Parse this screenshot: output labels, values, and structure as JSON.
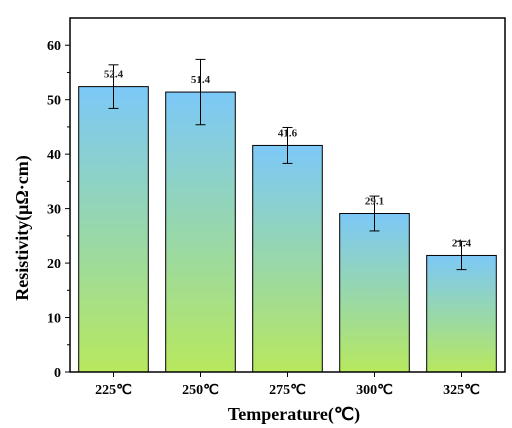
{
  "chart_data": {
    "type": "bar",
    "categories": [
      "225℃",
      "250℃",
      "275℃",
      "300℃",
      "325℃"
    ],
    "values": [
      52.4,
      51.4,
      41.6,
      29.1,
      21.4
    ],
    "error": [
      4.0,
      6.0,
      3.3,
      3.2,
      2.6
    ],
    "data_labels": [
      "52.4",
      "51.4",
      "41.6",
      "29.1",
      "21.4"
    ],
    "xlabel": "Temperature(℃)",
    "ylabel": "Resistivity(μΩ·cm)",
    "ylim": [
      0,
      65
    ],
    "yticks": [
      0,
      10,
      20,
      30,
      40,
      50,
      60
    ],
    "ytick_labels": [
      "0",
      "10",
      "20",
      "30",
      "40",
      "50",
      "60"
    ],
    "grid": false,
    "legend": "none",
    "bar_gradient": {
      "top": "#7cc8f8",
      "middle": "#9ad9a4",
      "bottom": "#b8e85e"
    },
    "bar_edge_color": "#000000"
  }
}
